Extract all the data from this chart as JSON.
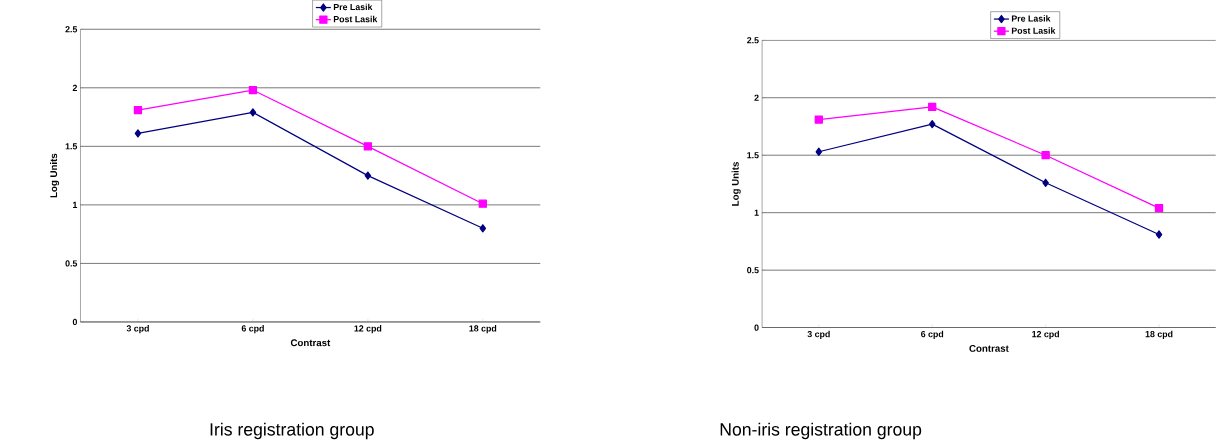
{
  "chart_data": [
    {
      "type": "line",
      "title": "Iris registration group",
      "xlabel": "Contrast",
      "ylabel": "Log Units",
      "categories": [
        "3 cpd",
        "6 cpd",
        "12 cpd",
        "18 cpd"
      ],
      "series": [
        {
          "name": "Pre Lasik",
          "color": "#000080",
          "marker": "diamond",
          "values": [
            1.61,
            1.79,
            1.25,
            0.8
          ]
        },
        {
          "name": "Post Lasik",
          "color": "#ff00ff",
          "marker": "square",
          "values": [
            1.81,
            1.98,
            1.5,
            1.01
          ]
        }
      ],
      "ylim": [
        0,
        2.5
      ],
      "yticks": [
        0,
        0.5,
        1,
        1.5,
        2,
        2.5
      ],
      "grid": "y",
      "legend": "top"
    },
    {
      "type": "line",
      "title": "Non-iris registration group",
      "xlabel": "Contrast",
      "ylabel": "Log Units",
      "categories": [
        "3 cpd",
        "6 cpd",
        "12 cpd",
        "18 cpd"
      ],
      "series": [
        {
          "name": "Pre Lasik",
          "color": "#000080",
          "marker": "diamond",
          "values": [
            1.53,
            1.77,
            1.26,
            0.81
          ]
        },
        {
          "name": "Post Lasik",
          "color": "#ff00ff",
          "marker": "square",
          "values": [
            1.81,
            1.92,
            1.5,
            1.04
          ]
        }
      ],
      "ylim": [
        0,
        2.5
      ],
      "yticks": [
        0,
        0.5,
        1,
        1.5,
        2,
        2.5
      ],
      "grid": "y",
      "legend": "top"
    }
  ]
}
